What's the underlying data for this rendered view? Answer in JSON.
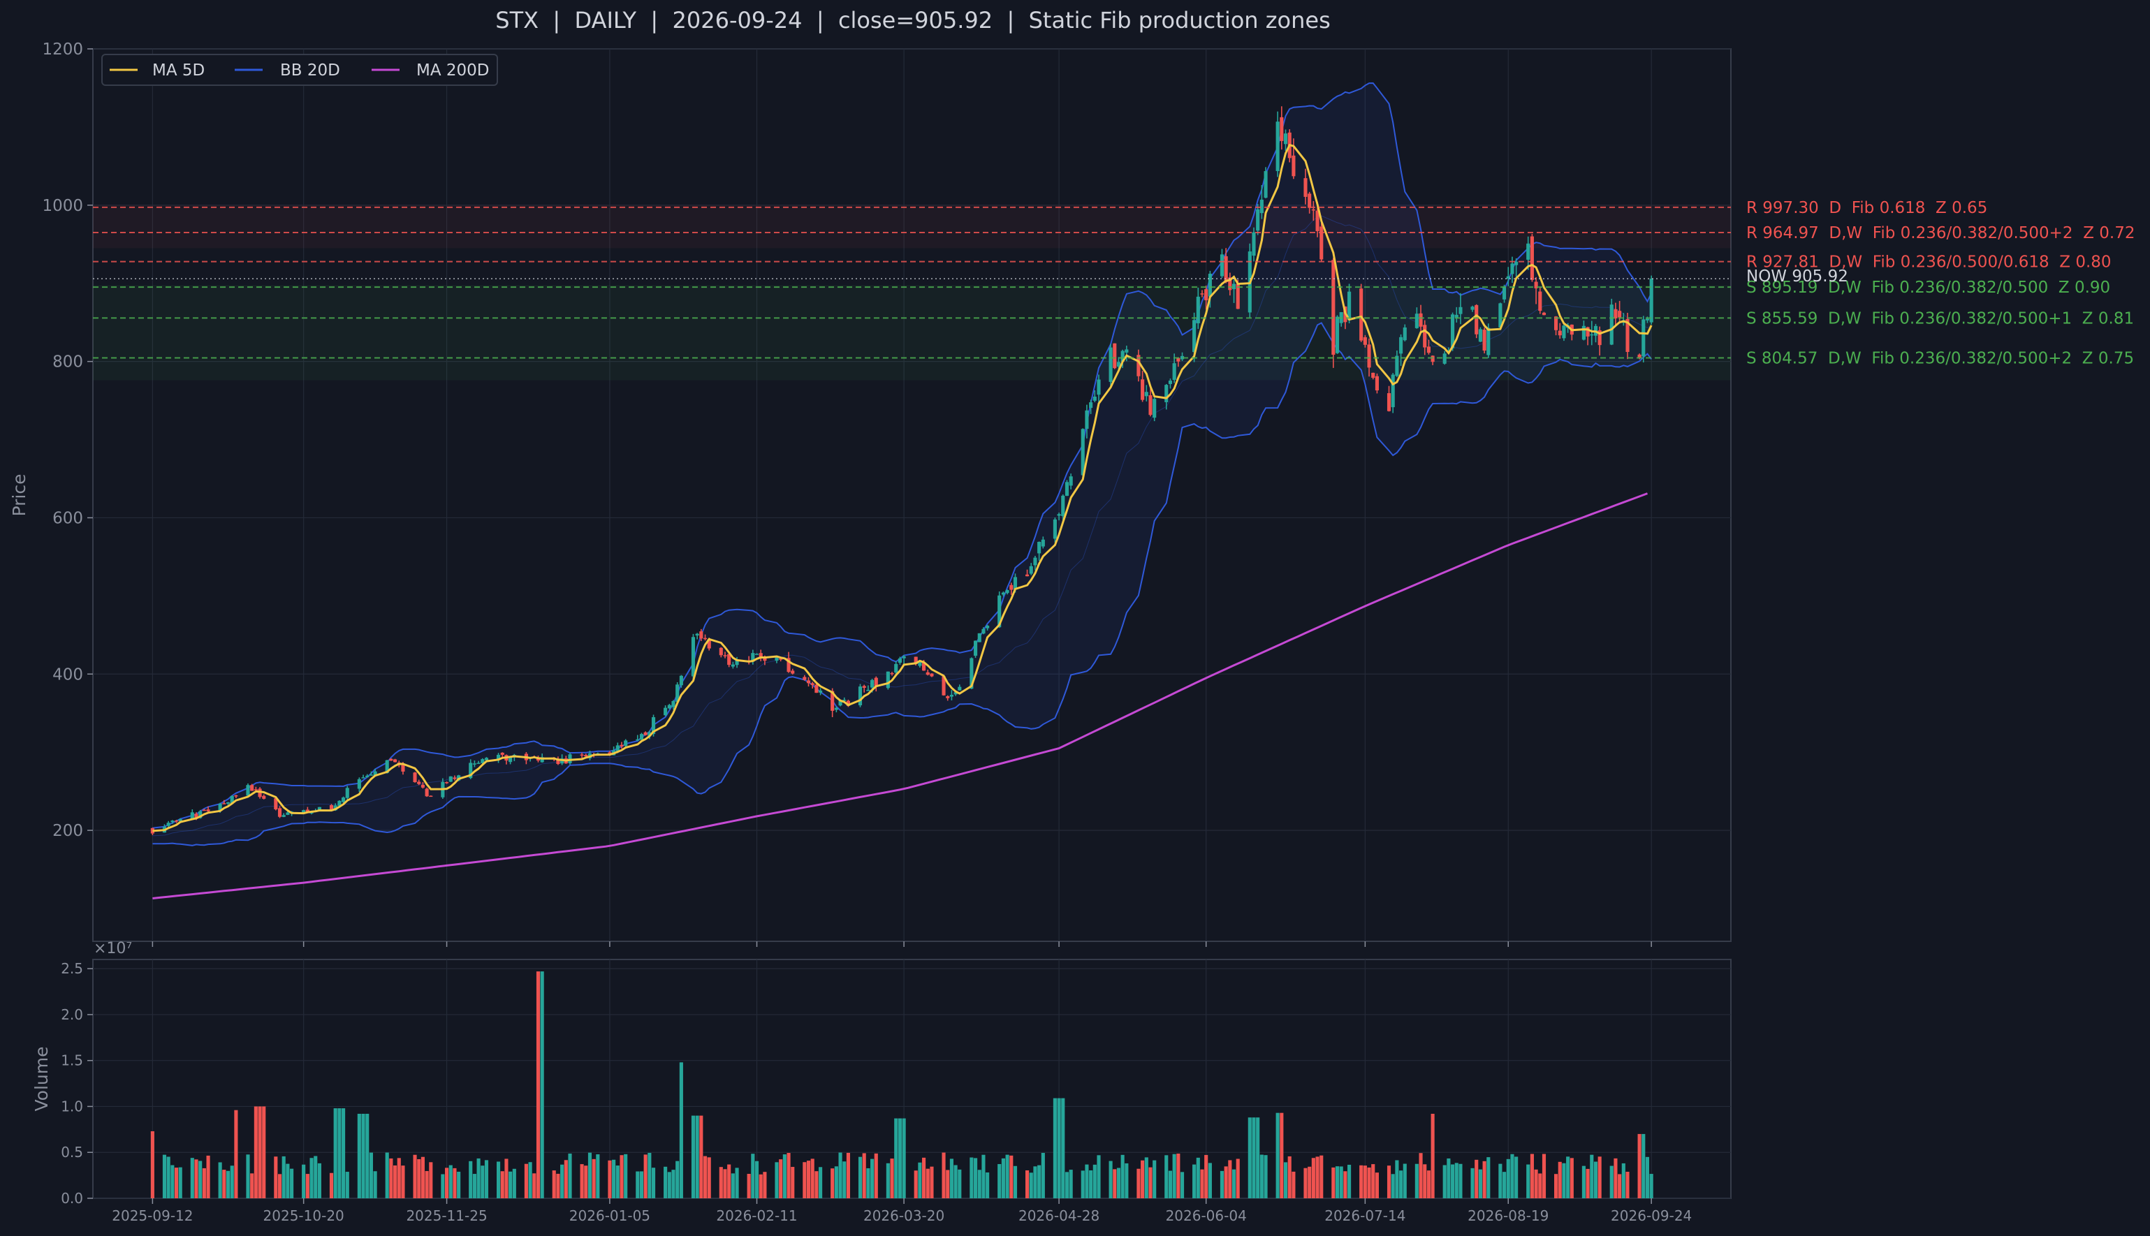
{
  "chart_data": {
    "type": "candlestick",
    "title": "STX  |  DAILY  |  2026-09-24  |  close=905.92  |  Static Fib production zones",
    "price_panel": {
      "ylabel": "Price",
      "ylim": [
        58,
        1200
      ],
      "yticks": [
        200,
        400,
        600,
        800,
        1000,
        1200
      ],
      "grid": true,
      "offset_label": "×10⁷",
      "legend_position": "top-left",
      "legend": [
        {
          "name": "MA 5D",
          "color": "#f2c744"
        },
        {
          "name": "BB 20D",
          "color": "#2f59d9"
        },
        {
          "name": "MA 200D",
          "color": "#c54ad4"
        }
      ]
    },
    "volume_panel": {
      "ylabel": "Volume",
      "ylim": [
        0,
        26000000.0
      ],
      "yticks": [
        0,
        5000000,
        10000000,
        15000000,
        20000000,
        25000000
      ],
      "ytick_labels": [
        "0.0",
        "0.5",
        "1.0",
        "1.5",
        "2.0",
        "2.5"
      ]
    },
    "x_range": [
      "2025-08-28",
      "2026-10-14"
    ],
    "x_ticks": [
      "2025-09-12",
      "2025-10-20",
      "2025-11-25",
      "2026-01-05",
      "2026-02-11",
      "2026-03-20",
      "2026-04-28",
      "2026-06-04",
      "2026-07-14",
      "2026-08-19",
      "2026-09-24"
    ],
    "price_anchors": [
      [
        "2025-09-12",
        200
      ],
      [
        "2025-09-30",
        235
      ],
      [
        "2025-10-06",
        255
      ],
      [
        "2025-10-14",
        220
      ],
      [
        "2025-10-27",
        228
      ],
      [
        "2025-11-03",
        265
      ],
      [
        "2025-11-10",
        290
      ],
      [
        "2025-11-20",
        248
      ],
      [
        "2025-12-01",
        280
      ],
      [
        "2025-12-08",
        292
      ],
      [
        "2025-12-22",
        288
      ],
      [
        "2026-01-05",
        300
      ],
      [
        "2026-01-14",
        325
      ],
      [
        "2026-01-21",
        365
      ],
      [
        "2026-01-26",
        450
      ],
      [
        "2026-02-02",
        420
      ],
      [
        "2026-02-16",
        420
      ],
      [
        "2026-02-23",
        400
      ],
      [
        "2026-03-02",
        350
      ],
      [
        "2026-03-11",
        380
      ],
      [
        "2026-03-20",
        425
      ],
      [
        "2026-03-25",
        410
      ],
      [
        "2026-03-31",
        365
      ],
      [
        "2026-04-06",
        420
      ],
      [
        "2026-04-13",
        500
      ],
      [
        "2026-04-21",
        540
      ],
      [
        "2026-04-28",
        610
      ],
      [
        "2026-05-05",
        730
      ],
      [
        "2026-05-10",
        800
      ],
      [
        "2026-05-16",
        820
      ],
      [
        "2026-05-21",
        740
      ],
      [
        "2026-05-26",
        780
      ],
      [
        "2026-06-01",
        860
      ],
      [
        "2026-06-06",
        930
      ],
      [
        "2026-06-12",
        860
      ],
      [
        "2026-06-18",
        1010
      ],
      [
        "2026-06-22",
        1110
      ],
      [
        "2026-06-26",
        1050
      ],
      [
        "2026-07-02",
        960
      ],
      [
        "2026-07-06",
        830
      ],
      [
        "2026-07-10",
        890
      ],
      [
        "2026-07-16",
        780
      ],
      [
        "2026-07-20",
        760
      ],
      [
        "2026-07-26",
        880
      ],
      [
        "2026-08-01",
        780
      ],
      [
        "2026-08-07",
        870
      ],
      [
        "2026-08-13",
        820
      ],
      [
        "2026-08-19",
        920
      ],
      [
        "2026-08-23",
        960
      ],
      [
        "2026-08-29",
        830
      ],
      [
        "2026-09-06",
        840
      ],
      [
        "2026-09-11",
        830
      ],
      [
        "2026-09-16",
        870
      ],
      [
        "2026-09-20",
        780
      ],
      [
        "2026-09-24",
        905.92
      ]
    ],
    "ma200_anchors": [
      [
        "2025-09-12",
        113
      ],
      [
        "2025-10-20",
        133
      ],
      [
        "2025-11-25",
        155
      ],
      [
        "2026-01-05",
        180
      ],
      [
        "2026-02-11",
        218
      ],
      [
        "2026-03-20",
        253
      ],
      [
        "2026-04-28",
        305
      ],
      [
        "2026-06-04",
        395
      ],
      [
        "2026-07-14",
        487
      ],
      [
        "2026-08-19",
        565
      ],
      [
        "2026-09-24",
        633
      ]
    ],
    "volume_spikes": [
      [
        "2025-09-13",
        7300000
      ],
      [
        "2025-10-04",
        9600000
      ],
      [
        "2025-10-09",
        10000000
      ],
      [
        "2025-10-29",
        9800000
      ],
      [
        "2025-11-04",
        9200000
      ],
      [
        "2025-12-19",
        24700000
      ],
      [
        "2026-01-24",
        14800000
      ],
      [
        "2026-01-27",
        9000000
      ],
      [
        "2026-03-19",
        8700000
      ],
      [
        "2026-04-28",
        10900000
      ],
      [
        "2026-06-16",
        8800000
      ],
      [
        "2026-06-22",
        9300000
      ],
      [
        "2026-08-01",
        9200000
      ],
      [
        "2026-09-21",
        7000000
      ]
    ],
    "levels": [
      {
        "kind": "R",
        "price": 997.3,
        "label": "R 997.30  D  Fib 0.618  Z 0.65"
      },
      {
        "kind": "R",
        "price": 964.97,
        "label": "R 964.97  D,W  Fib 0.236/0.382/0.500+2  Z 0.72"
      },
      {
        "kind": "R",
        "price": 927.81,
        "label": "R 927.81  D,W  Fib 0.236/0.500/0.618  Z 0.80"
      },
      {
        "kind": "S",
        "price": 895.19,
        "label": "S 895.19  D,W  Fib 0.236/0.382/0.500  Z 0.90"
      },
      {
        "kind": "S",
        "price": 855.59,
        "label": "S 855.59  D,W  Fib 0.236/0.382/0.500+1  Z 0.81"
      },
      {
        "kind": "S",
        "price": 804.57,
        "label": "S 804.57  D,W  Fib 0.236/0.382/0.500+2  Z 0.75"
      }
    ],
    "now_price": 905.92,
    "now_label": "NOW 905.92",
    "colors": {
      "background": "#131722",
      "panel": "#131722",
      "grid": "#242a38",
      "up": "#26a69a",
      "down": "#ef5350",
      "ma5": "#f2c744",
      "bb": "#2f59d9",
      "ma200": "#c54ad4",
      "resistance": "#ef5350",
      "support": "#4caf50",
      "text": "#d1d4dc",
      "axis_text": "#8a8f9c"
    }
  }
}
